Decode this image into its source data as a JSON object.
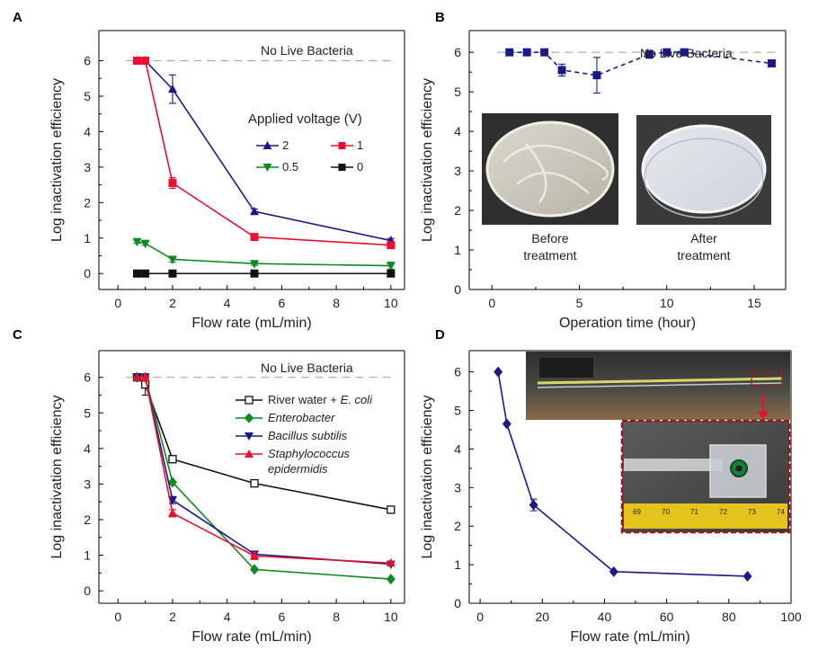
{
  "colors": {
    "navy": "#1a1a8c",
    "red": "#e8102e",
    "green": "#0f8a1e",
    "black": "#111111",
    "dash": "#a8a8a8",
    "photo_dark": "#3a3a3a",
    "photo_frame": "#a0141e"
  },
  "chart_data": [
    {
      "panel": "A",
      "type": "line",
      "xlabel": "Flow rate (mL/min)",
      "ylabel": "Log inactivation efficiency",
      "xlim": [
        -0.7,
        10.5
      ],
      "ylim": [
        -0.45,
        6.85
      ],
      "xticks": [
        "0",
        "2",
        "4",
        "6",
        "8",
        "10"
      ],
      "yticks": [
        "0",
        "1",
        "2",
        "3",
        "4",
        "5",
        "6"
      ],
      "reference_line": {
        "y": 6,
        "style": "dashed"
      },
      "annotation": "No Live Bacteria",
      "legend_title": "Applied voltage (V)",
      "legend_position": "right",
      "series": [
        {
          "name": "2",
          "color": "#1a1a8c",
          "marker": "triangle-up",
          "x": [
            0.7,
            1,
            2,
            5,
            10
          ],
          "y": [
            6,
            6,
            5.2,
            1.75,
            0.93
          ],
          "err": [
            0,
            0,
            0.4,
            0.07,
            0.06
          ]
        },
        {
          "name": "1",
          "color": "#e8102e",
          "marker": "square",
          "x": [
            0.7,
            1,
            2,
            5,
            10
          ],
          "y": [
            6,
            6,
            2.55,
            1.03,
            0.8
          ],
          "err": [
            0,
            0,
            0.15,
            0.05,
            0.05
          ]
        },
        {
          "name": "0.5",
          "color": "#0f8a1e",
          "marker": "triangle-down",
          "x": [
            0.7,
            1,
            2,
            5,
            10
          ],
          "y": [
            0.9,
            0.85,
            0.4,
            0.28,
            0.22
          ],
          "err": [
            0.05,
            0.05,
            0.08,
            0.05,
            0.1
          ]
        },
        {
          "name": "0",
          "color": "#111111",
          "marker": "square",
          "x": [
            0.7,
            1,
            2,
            5,
            10
          ],
          "y": [
            0,
            0,
            0,
            0,
            0
          ],
          "err": [
            0,
            0,
            0,
            0,
            0
          ]
        }
      ]
    },
    {
      "panel": "B",
      "type": "line",
      "xlabel": "Operation time (hour)",
      "ylabel": "Log inactivation efficiency",
      "xlim": [
        -1.3,
        16.8
      ],
      "ylim": [
        0,
        6.55
      ],
      "xticks": [
        "0",
        "5",
        "10",
        "15"
      ],
      "yticks": [
        "0",
        "1",
        "2",
        "3",
        "4",
        "5",
        "6"
      ],
      "reference_line": {
        "y": 6,
        "style": "dashed"
      },
      "annotation": "No Live Bacteria",
      "inset_captions": [
        "Before treatment",
        "After treatment"
      ],
      "series": [
        {
          "color": "#1a1a8c",
          "marker": "square",
          "line": "dashed",
          "x": [
            1,
            2,
            3,
            4,
            6,
            9,
            10,
            11,
            16
          ],
          "y": [
            6,
            6,
            6,
            5.55,
            5.42,
            5.95,
            6,
            6,
            5.72
          ],
          "err": [
            0,
            0,
            0,
            0.15,
            0.45,
            0.1,
            0,
            0,
            0.05
          ]
        }
      ]
    },
    {
      "panel": "C",
      "type": "line",
      "xlabel": "Flow rate (mL/min)",
      "ylabel": "Log inactivation efficiency",
      "xlim": [
        -0.7,
        10.5
      ],
      "ylim": [
        -0.35,
        6.75
      ],
      "xticks": [
        "0",
        "2",
        "4",
        "6",
        "8",
        "10"
      ],
      "yticks": [
        "0",
        "1",
        "2",
        "3",
        "4",
        "5",
        "6"
      ],
      "reference_line": {
        "y": 6,
        "style": "dashed"
      },
      "annotation": "No Live Bacteria",
      "legend_position": "right",
      "series": [
        {
          "name_prefix": "River water + ",
          "name_italic": "E. coli",
          "color": "#111111",
          "marker": "square-open",
          "x": [
            0.7,
            1,
            2,
            5,
            10
          ],
          "y": [
            6,
            5.8,
            3.7,
            3.02,
            2.28
          ],
          "err": [
            0,
            0.3,
            0.1,
            0.08,
            0.05
          ]
        },
        {
          "name_italic": "Enterobacter",
          "color": "#0f8a1e",
          "marker": "diamond",
          "x": [
            0.7,
            1,
            2,
            5,
            10
          ],
          "y": [
            6,
            6,
            3.05,
            0.6,
            0.33
          ],
          "err": [
            0,
            0.1,
            0,
            0,
            0
          ]
        },
        {
          "name_italic": "Bacillus subtilis",
          "color": "#1a1a8c",
          "marker": "triangle-down",
          "x": [
            0.7,
            1,
            2,
            5,
            10
          ],
          "y": [
            6,
            6,
            2.55,
            1.03,
            0.75
          ],
          "err": [
            0,
            0.1,
            0.1,
            0.05,
            0.05
          ]
        },
        {
          "name_italic": "Staphylococcus epidermidis",
          "color": "#e8102e",
          "marker": "triangle-up",
          "x": [
            0.7,
            1,
            2,
            5,
            10
          ],
          "y": [
            6,
            6,
            2.18,
            0.98,
            0.78
          ],
          "err": [
            0,
            0.1,
            0.1,
            0.1,
            0.05
          ]
        }
      ]
    },
    {
      "panel": "D",
      "type": "line",
      "xlabel": "Flow rate (mL/min)",
      "ylabel": "Log inactivation efficiency",
      "xlim": [
        -3.5,
        100
      ],
      "ylim": [
        0,
        6.55
      ],
      "xticks": [
        "0",
        "20",
        "40",
        "60",
        "80",
        "100"
      ],
      "yticks": [
        "0",
        "1",
        "2",
        "3",
        "4",
        "5",
        "6"
      ],
      "inset_ruler_labels": [
        "69",
        "70",
        "71",
        "72",
        "73",
        "74"
      ],
      "series": [
        {
          "color": "#1a1a8c",
          "marker": "diamond",
          "x": [
            5.8,
            8.6,
            17.2,
            43,
            86
          ],
          "y": [
            6,
            4.65,
            2.55,
            0.82,
            0.7
          ],
          "err": [
            0,
            0,
            0.15,
            0,
            0
          ]
        }
      ]
    }
  ]
}
